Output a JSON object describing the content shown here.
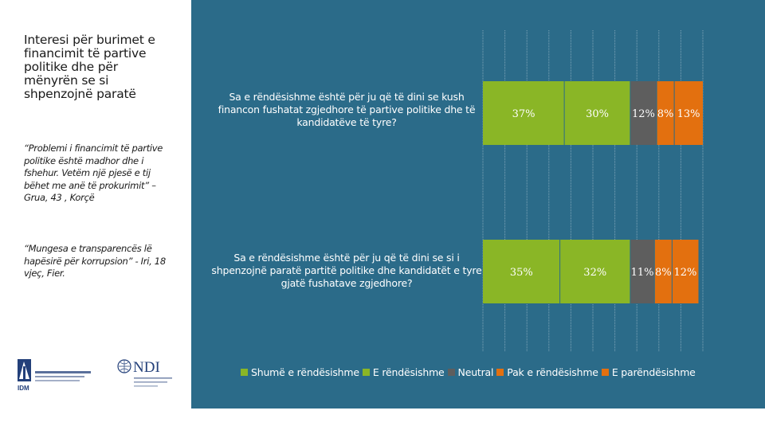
{
  "heading": "Interesi për burimet e financimit të partive politike dhe për mënyrën se si shpenzojnë paratë",
  "quotes": [
    "“Problemi i financimit të partive politike është madhor dhe i fshehur. Vetëm një pjesë e tij bëhet me anë të prokurimit” – Grua, 43 , Korçë",
    "“Mungesa e transparencës lë hapësirë për korrupsion” - Iri, 18 vjeç, Fier."
  ],
  "logos": {
    "idm_text": "IDM",
    "ndi_text": "NDI"
  },
  "colors": {
    "panel_background": "#2b6b89",
    "shume_e_rendesishme": "#8ab626",
    "e_rendesishme": "#8ab626",
    "neutral": "#5e5e5e",
    "pak_e_rendesishme": "#e3700f",
    "e_parendesishme": "#e3700f"
  },
  "chart_data": {
    "type": "bar",
    "orientation": "horizontal",
    "stacked": true,
    "categories": [
      "Sa e rëndësishme është për ju që të dini se kush financon fushatat zgjedhore të partive politike dhe të kandidatëve të tyre?",
      "Sa e rëndësishme është për ju që të dini se si i shpenzojnë paratë partitë politike dhe kandidatët e tyre gjatë fushatave zgjedhore?"
    ],
    "series": [
      {
        "name": "Shumë e rëndësishme",
        "values": [
          37,
          35
        ],
        "labels": [
          "37%",
          "35%"
        ],
        "color": "#8ab626"
      },
      {
        "name": "E rëndësishme",
        "values": [
          30,
          32
        ],
        "labels": [
          "30%",
          "32%"
        ],
        "color": "#8ab626"
      },
      {
        "name": "Neutral",
        "values": [
          12,
          11
        ],
        "labels": [
          "12%",
          "11%"
        ],
        "color": "#5e5e5e"
      },
      {
        "name": "Pak e rëndësishme",
        "values": [
          8,
          8
        ],
        "labels": [
          "8%",
          "8%"
        ],
        "color": "#e3700f"
      },
      {
        "name": "E parëndësishme",
        "values": [
          13,
          12
        ],
        "labels": [
          "13%",
          "12%"
        ],
        "color": "#e3700f"
      }
    ],
    "xlim": [
      0,
      100
    ],
    "grid": true,
    "legend_position": "bottom"
  }
}
